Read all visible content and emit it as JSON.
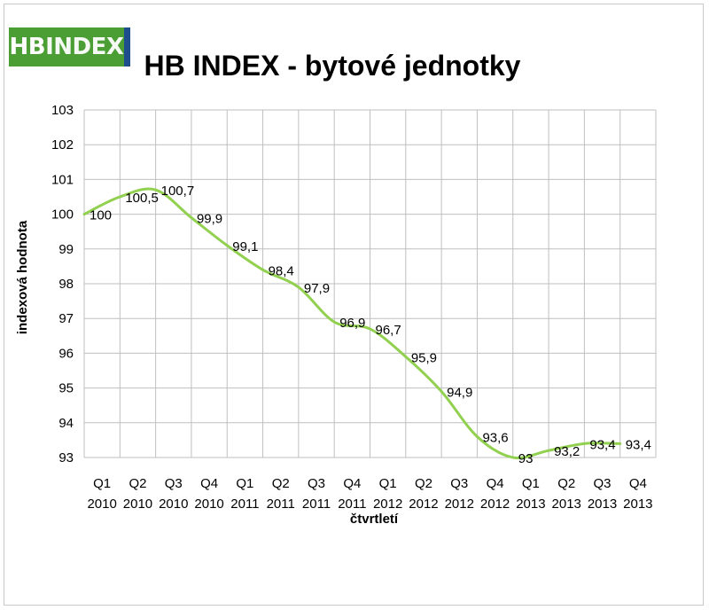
{
  "logo": {
    "part1": "HB",
    "part2": "INDEX",
    "color": "#4a9e34",
    "bar_color": "#1f4e8c"
  },
  "chart_data": {
    "type": "line",
    "title": "HB INDEX - bytové jednotky",
    "xlabel": "čtvrtletí",
    "ylabel": "indexová hodnota",
    "categories": [
      [
        "Q1",
        "2010"
      ],
      [
        "Q2",
        "2010"
      ],
      [
        "Q3",
        "2010"
      ],
      [
        "Q4",
        "2010"
      ],
      [
        "Q1",
        "2011"
      ],
      [
        "Q2",
        "2011"
      ],
      [
        "Q3",
        "2011"
      ],
      [
        "Q4",
        "2011"
      ],
      [
        "Q1",
        "2012"
      ],
      [
        "Q2",
        "2012"
      ],
      [
        "Q3",
        "2012"
      ],
      [
        "Q4",
        "2012"
      ],
      [
        "Q1",
        "2013"
      ],
      [
        "Q2",
        "2013"
      ],
      [
        "Q3",
        "2013"
      ],
      [
        "Q4",
        "2013"
      ]
    ],
    "values": [
      100,
      100.5,
      100.7,
      99.9,
      99.1,
      98.4,
      97.9,
      96.9,
      96.7,
      95.9,
      94.9,
      93.6,
      93,
      93.2,
      93.4,
      93.4
    ],
    "data_labels": [
      "100",
      "100,5",
      "100,7",
      "99,9",
      "99,1",
      "98,4",
      "97,9",
      "96,9",
      "96,7",
      "95,9",
      "94,9",
      "93,6",
      "93",
      "93,2",
      "93,4",
      "93,4"
    ],
    "ylim": [
      93,
      103
    ],
    "yticks": [
      93,
      94,
      95,
      96,
      97,
      98,
      99,
      100,
      101,
      102,
      103
    ],
    "grid": true,
    "legend": "none",
    "line_color": "#92d050",
    "grid_color": "#bfbfbf"
  }
}
